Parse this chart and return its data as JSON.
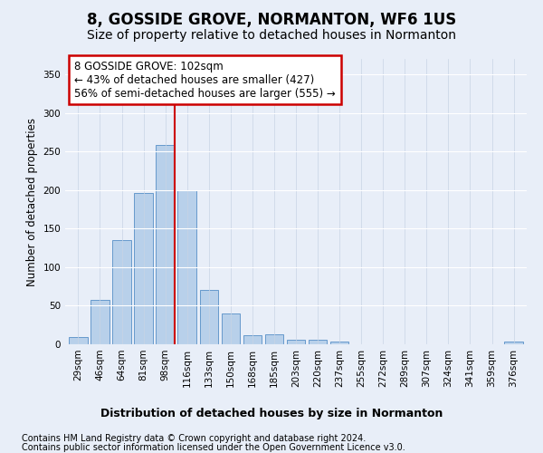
{
  "title1": "8, GOSSIDE GROVE, NORMANTON, WF6 1US",
  "title2": "Size of property relative to detached houses in Normanton",
  "xlabel": "Distribution of detached houses by size in Normanton",
  "ylabel": "Number of detached properties",
  "categories": [
    "29sqm",
    "46sqm",
    "64sqm",
    "81sqm",
    "98sqm",
    "116sqm",
    "133sqm",
    "150sqm",
    "168sqm",
    "185sqm",
    "203sqm",
    "220sqm",
    "237sqm",
    "255sqm",
    "272sqm",
    "289sqm",
    "307sqm",
    "324sqm",
    "341sqm",
    "359sqm",
    "376sqm"
  ],
  "values": [
    9,
    57,
    135,
    196,
    258,
    200,
    70,
    40,
    12,
    13,
    6,
    6,
    4,
    0,
    0,
    0,
    0,
    0,
    0,
    0,
    3
  ],
  "bar_color": "#b8d0ea",
  "bar_edge_color": "#6699cc",
  "background_color": "#e8eef8",
  "grid_color": "#d0d8e8",
  "annotation_line1": "8 GOSSIDE GROVE: 102sqm",
  "annotation_line2": "← 43% of detached houses are smaller (427)",
  "annotation_line3": "56% of semi-detached houses are larger (555) →",
  "annotation_box_color": "#ffffff",
  "annotation_box_edge_color": "#cc0000",
  "red_line_x": 4.43,
  "red_line_color": "#cc0000",
  "ylim": [
    0,
    370
  ],
  "yticks": [
    0,
    50,
    100,
    150,
    200,
    250,
    300,
    350
  ],
  "footnote1": "Contains HM Land Registry data © Crown copyright and database right 2024.",
  "footnote2": "Contains public sector information licensed under the Open Government Licence v3.0.",
  "title1_fontsize": 12,
  "title2_fontsize": 10,
  "xlabel_fontsize": 9,
  "ylabel_fontsize": 8.5,
  "tick_fontsize": 7.5,
  "annotation_fontsize": 8.5,
  "footnote_fontsize": 7
}
